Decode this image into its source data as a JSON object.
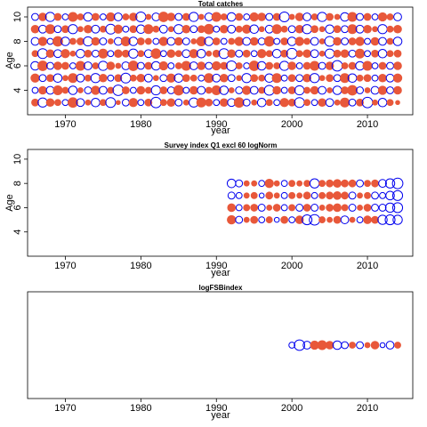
{
  "chart_data": [
    {
      "type": "scatter",
      "subtype": "bubble-residuals",
      "title": "Total catches",
      "xlabel": "year",
      "ylabel": "Age",
      "xlim": [
        1965,
        2016
      ],
      "ylim": [
        2,
        10.8
      ],
      "xticks": [
        1970,
        1980,
        1990,
        2000,
        2010
      ],
      "yticks": [
        4,
        6,
        8,
        10
      ],
      "years": [
        1966,
        2014
      ],
      "ages": [
        3,
        4,
        5,
        6,
        7,
        8,
        9,
        10
      ],
      "series": [
        {
          "name": "",
          "sign": "positive",
          "color": "#e8583a"
        },
        {
          "name": "",
          "sign": "negative",
          "color": "#0000ee"
        }
      ],
      "values": [
        [
          0.5,
          -0.7,
          0.6,
          0.4,
          -0.3,
          0.9,
          -0.5,
          0.3,
          -0.6,
          0.4,
          -0.8,
          0.2,
          -0.4,
          0.7,
          -0.3,
          0.5,
          -0.9,
          0.4,
          0.6,
          -0.4,
          0.3,
          -0.7,
          0.8,
          0.5,
          -0.3,
          0.6,
          -0.5,
          0.9,
          -0.4,
          0.3,
          -0.6,
          0.4,
          -0.3,
          0.7,
          0.5,
          -0.8,
          0.4,
          -0.3,
          0.6,
          -0.5,
          0.3,
          0.8,
          -0.4,
          0.5,
          -0.9,
          0.3,
          -0.6,
          0.4,
          0.2
        ],
        [
          -0.3,
          0.6,
          -0.5,
          0.8,
          0.4,
          -0.6,
          0.3,
          -0.4,
          0.7,
          -0.5,
          0.4,
          -0.9,
          0.5,
          -0.3,
          0.6,
          0.4,
          -0.7,
          0.5,
          -0.4,
          0.9,
          -0.3,
          0.6,
          -0.5,
          0.4,
          0.8,
          -0.6,
          0.3,
          -0.4,
          0.7,
          -0.5,
          0.4,
          -0.8,
          0.6,
          -0.3,
          0.5,
          -0.7,
          0.4,
          0.6,
          -0.5,
          0.3,
          -0.6,
          0.5,
          0.9,
          -0.4,
          0.3,
          -0.5,
          0.7,
          -0.4,
          0.6
        ],
        [
          0.7,
          -0.4,
          0.5,
          -0.6,
          0.3,
          0.8,
          -0.5,
          0.4,
          -0.7,
          0.6,
          -0.3,
          0.5,
          -0.8,
          0.4,
          0.6,
          -0.5,
          0.3,
          -0.4,
          0.7,
          -0.6,
          0.5,
          0.4,
          -0.3,
          0.8,
          -0.5,
          0.6,
          -0.4,
          0.3,
          -0.7,
          0.5,
          0.4,
          -0.6,
          0.8,
          -0.3,
          0.5,
          -0.4,
          0.6,
          -0.7,
          0.3,
          0.5,
          -0.4,
          0.8,
          -0.6,
          0.4,
          0.5,
          -0.3,
          0.6,
          -0.5,
          0.7
        ],
        [
          -0.6,
          0.9,
          -0.4,
          0.6,
          0.5,
          -0.3,
          0.8,
          -0.5,
          0.4,
          -0.7,
          0.6,
          0.3,
          -0.5,
          0.9,
          -0.4,
          0.5,
          -0.6,
          0.7,
          -0.3,
          0.4,
          0.8,
          -0.5,
          0.6,
          -0.4,
          0.7,
          0.5,
          -0.8,
          0.4,
          -0.3,
          0.9,
          -0.6,
          0.5,
          0.4,
          -0.7,
          0.6,
          -0.3,
          0.5,
          0.8,
          -0.4,
          0.6,
          -0.9,
          0.4,
          0.5,
          -0.6,
          0.8,
          -0.3,
          0.5,
          -0.4,
          0.6
        ],
        [
          0.4,
          -0.8,
          0.6,
          -0.5,
          0.7,
          0.3,
          -0.6,
          0.5,
          -0.4,
          0.8,
          -0.3,
          0.6,
          0.5,
          -0.7,
          0.4,
          -0.5,
          0.9,
          -0.3,
          0.6,
          0.4,
          -0.5,
          0.7,
          -0.6,
          0.3,
          0.5,
          -0.8,
          0.6,
          -0.4,
          0.5,
          -0.3,
          0.7,
          0.4,
          -0.6,
          0.5,
          -0.9,
          0.4,
          0.6,
          -0.5,
          0.3,
          -0.7,
          0.5,
          0.6,
          -0.4,
          0.8,
          -0.3,
          0.5,
          -0.6,
          0.4,
          0.5
        ],
        [
          -0.5,
          0.7,
          -0.3,
          0.9,
          -0.6,
          0.4,
          0.5,
          -0.7,
          0.6,
          -0.4,
          0.3,
          -0.5,
          0.8,
          -0.6,
          0.5,
          0.4,
          -0.3,
          0.7,
          -0.5,
          0.6,
          -0.4,
          0.3,
          0.8,
          -0.6,
          0.5,
          -0.3,
          0.4,
          0.7,
          -0.5,
          0.6,
          -0.4,
          0.9,
          -0.3,
          0.5,
          -0.6,
          0.7,
          0.4,
          -0.5,
          0.3,
          -0.8,
          0.6,
          -0.4,
          0.5,
          0.7,
          -0.3,
          0.6,
          -0.5,
          0.4,
          -0.6
        ],
        [
          0.6,
          -0.5,
          0.8,
          -0.4,
          0.5,
          -0.7,
          0.3,
          0.6,
          -0.5,
          0.4,
          -0.8,
          0.7,
          -0.3,
          0.5,
          -0.6,
          0.8,
          0.4,
          -0.5,
          0.3,
          -0.7,
          0.6,
          -0.4,
          0.5,
          0.9,
          -0.3,
          0.6,
          -0.5,
          0.4,
          0.7,
          -0.6,
          0.3,
          -0.5,
          0.8,
          0.4,
          -0.4,
          0.6,
          -0.7,
          0.5,
          0.3,
          -0.6,
          0.5,
          -0.4,
          0.8,
          -0.5,
          0.6,
          0.3,
          -0.7,
          0.4,
          0.6
        ],
        [
          -0.4,
          0.6,
          -0.7,
          0.5,
          -0.3,
          0.8,
          0.4,
          -0.6,
          0.5,
          -0.3,
          0.7,
          -0.5,
          0.4,
          0.6,
          -0.8,
          0.3,
          -0.5,
          0.9,
          0.6,
          -0.4,
          0.5,
          -0.7,
          0.3,
          -0.5,
          0.8,
          0.4,
          -0.6,
          0.5,
          -0.3,
          0.7,
          0.6,
          -0.4,
          0.5,
          -0.8,
          0.3,
          0.6,
          -0.5,
          0.4,
          -0.7,
          0.5,
          0.3,
          -0.6,
          0.8,
          -0.4,
          0.5,
          -0.3,
          0.7,
          0.4,
          -0.5
        ]
      ]
    },
    {
      "type": "scatter",
      "subtype": "bubble-residuals",
      "title": "Survey index Q1 excl 60 logNorm",
      "xlabel": "year",
      "ylabel": "Age",
      "xlim": [
        1965,
        2016
      ],
      "ylim": [
        2,
        10.8
      ],
      "xticks": [
        1970,
        1980,
        1990,
        2000,
        2010
      ],
      "yticks": [
        4,
        6,
        8,
        10
      ],
      "years": [
        1992,
        2014
      ],
      "ages": [
        5,
        6,
        7,
        8
      ],
      "series": [
        {
          "name": "",
          "sign": "positive",
          "color": "#e8583a"
        },
        {
          "name": "",
          "sign": "negative",
          "color": "#0000ee"
        }
      ],
      "values": [
        [
          0.7,
          -0.4,
          0.3,
          0.5,
          -0.3,
          0.4,
          -0.2,
          0.5,
          -0.3,
          0.6,
          -0.8,
          -0.9,
          0.4,
          0.3,
          0.5,
          -0.5,
          0.3,
          -0.3,
          0.6,
          0.5,
          -0.7,
          -0.8,
          -0.7
        ],
        [
          0.6,
          -0.3,
          0.4,
          0.5,
          -0.4,
          0.3,
          0.5,
          -0.3,
          0.4,
          -0.4,
          0.5,
          -0.4,
          0.3,
          0.5,
          0.6,
          0.4,
          -0.4,
          0.3,
          0.5,
          -0.4,
          -0.4,
          -0.7,
          -0.8
        ],
        [
          -0.4,
          -0.3,
          0.3,
          0.4,
          -0.2,
          0.5,
          0.3,
          -0.3,
          0.4,
          0.3,
          0.5,
          -0.3,
          0.4,
          0.5,
          0.6,
          0.5,
          -0.4,
          0.3,
          0.4,
          -0.4,
          -0.3,
          -0.6,
          -0.8
        ],
        [
          -0.6,
          -0.4,
          0.3,
          0.3,
          -0.3,
          0.7,
          0.3,
          -0.3,
          0.4,
          0.3,
          0.4,
          -0.7,
          0.4,
          0.5,
          0.6,
          0.5,
          0.5,
          -0.4,
          0.4,
          0.5,
          -0.5,
          -0.7,
          -0.9
        ]
      ]
    },
    {
      "type": "scatter",
      "subtype": "bubble-residuals",
      "title": "logFSBindex",
      "xlabel": "year",
      "ylabel": "",
      "xlim": [
        1965,
        2016
      ],
      "xticks": [
        1970,
        1980,
        1990,
        2000,
        2010
      ],
      "years": [
        2000,
        2014
      ],
      "series": [
        {
          "name": "",
          "sign": "positive",
          "color": "#e8583a"
        },
        {
          "name": "",
          "sign": "negative",
          "color": "#0000ee"
        }
      ],
      "values": [
        -0.3,
        -0.9,
        -0.5,
        0.7,
        0.8,
        0.6,
        -0.6,
        -0.4,
        0.4,
        -0.4,
        0.3,
        0.6,
        -0.2,
        -0.5,
        0.4
      ]
    }
  ]
}
